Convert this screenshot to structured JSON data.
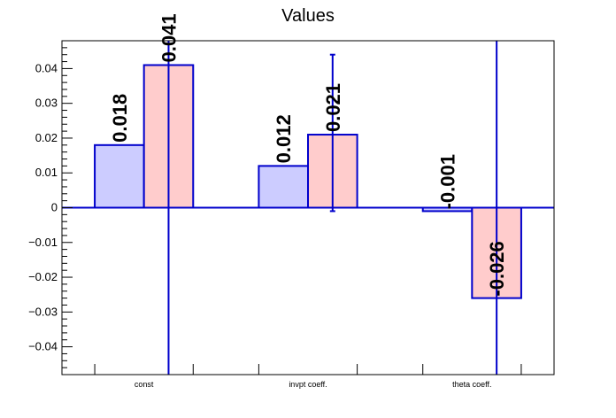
{
  "chart_data": {
    "type": "bar",
    "title": "Values",
    "categories": [
      "const",
      "invpt coeff.",
      "theta coeff."
    ],
    "series": [
      {
        "color": "#ccccff",
        "values": [
          0.018,
          0.012,
          -0.001
        ],
        "labels": [
          "0.018",
          "0.012",
          "-0.001"
        ]
      },
      {
        "color": "#ffcccc",
        "values": [
          0.041,
          0.021,
          -0.026
        ],
        "labels": [
          "0.041",
          "0.021",
          "-0.026"
        ],
        "error_low": [
          -0.048,
          -0.001,
          -0.048
        ],
        "error_high": [
          0.048,
          0.044,
          0.048
        ]
      }
    ],
    "ylim": [
      -0.048,
      0.048
    ],
    "yticks": [
      -0.04,
      -0.03,
      -0.02,
      -0.01,
      0,
      0.01,
      0.02,
      0.03,
      0.04
    ],
    "ytick_labels": [
      "−0.04",
      "−0.03",
      "−0.02",
      "−0.01",
      "0",
      "0.01",
      "0.02",
      "0.03",
      "0.04"
    ],
    "xlabel": "",
    "ylabel": "",
    "grid": false,
    "outline_color": "#0000cc"
  }
}
